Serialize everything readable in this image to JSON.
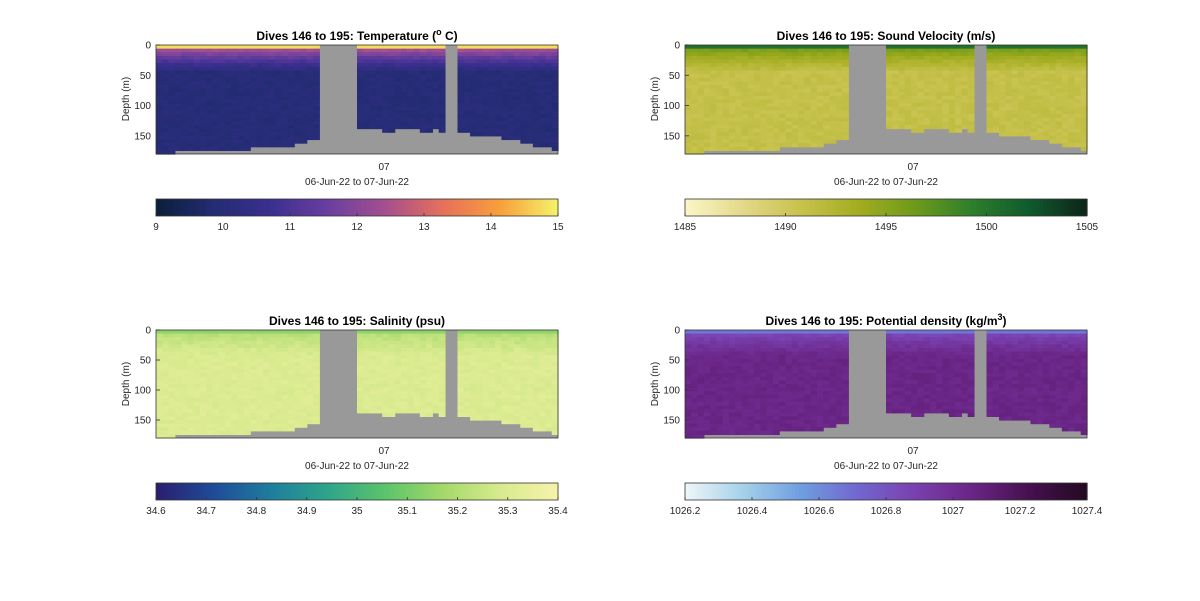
{
  "chart_data": [
    {
      "type": "heatmap",
      "title": "Dives 146 to 195: Temperature (",
      "title_sup": "o",
      "title_end": " C)",
      "ylabel": "Depth (m)",
      "ylim": [
        0,
        180
      ],
      "yticks": [
        "0",
        "50",
        "100",
        "150"
      ],
      "xtick": "07",
      "xlabel": "06-Jun-22 to 07-Jun-22",
      "colorbar_ticks": [
        "9",
        "10",
        "11",
        "12",
        "13",
        "14",
        "15"
      ],
      "colorbar_range": [
        9,
        15
      ],
      "colormap": [
        "#0b1f3a",
        "#232c72",
        "#3b2f8f",
        "#6a3fa0",
        "#a54f8f",
        "#e6705a",
        "#f8a03c",
        "#f4f36a"
      ],
      "field": "temperature",
      "surface_value": 13.8,
      "deep_value": 10.0
    },
    {
      "type": "heatmap",
      "title": "Dives 146 to 195: Sound Velocity (m/s)",
      "ylabel": "Depth (m)",
      "ylim": [
        0,
        180
      ],
      "yticks": [
        "0",
        "50",
        "100",
        "150"
      ],
      "xtick": "07",
      "xlabel": "06-Jun-22 to 07-Jun-22",
      "colorbar_ticks": [
        "1485",
        "1490",
        "1495",
        "1500",
        "1505"
      ],
      "colorbar_range": [
        1485,
        1505
      ],
      "colormap": [
        "#fbf6c8",
        "#e3d98a",
        "#c8c24e",
        "#a4ad20",
        "#6f9a1a",
        "#2d7f2c",
        "#0f5a2e",
        "#0d2418"
      ],
      "field": "sound_velocity",
      "surface_value": 1498.5,
      "deep_value": 1491.0
    },
    {
      "type": "heatmap",
      "title": "Dives 146 to 195: Salinity (psu)",
      "ylabel": "Depth (m)",
      "ylim": [
        0,
        180
      ],
      "yticks": [
        "0",
        "50",
        "100",
        "150"
      ],
      "xtick": "07",
      "xlabel": "06-Jun-22 to 07-Jun-22",
      "colorbar_ticks": [
        "34.6",
        "34.7",
        "34.8",
        "34.9",
        "35",
        "35.1",
        "35.2",
        "35.3",
        "35.4"
      ],
      "colorbar_range": [
        34.6,
        35.4
      ],
      "colormap": [
        "#2a1e6e",
        "#1f4b99",
        "#1f7d9d",
        "#2ea58a",
        "#5cc46a",
        "#a4d96a",
        "#d8ea8e",
        "#f6f3ab"
      ],
      "field": "salinity",
      "surface_value": 35.17,
      "deep_value": 35.3
    },
    {
      "type": "heatmap",
      "title": "Dives 146 to 195: Potential density (kg/m",
      "title_sup": "3",
      "title_end": ")",
      "ylabel": "Depth (m)",
      "ylim": [
        0,
        180
      ],
      "yticks": [
        "0",
        "50",
        "100",
        "150"
      ],
      "xtick": "07",
      "xlabel": "06-Jun-22 to 07-Jun-22",
      "colorbar_ticks": [
        "1026.2",
        "1026.4",
        "1026.6",
        "1026.8",
        "1027",
        "1027.2",
        "1027.4"
      ],
      "colorbar_range": [
        1026.2,
        1027.4
      ],
      "colormap": [
        "#eef6f8",
        "#a6d1ea",
        "#6f9fe0",
        "#7167cf",
        "#7a40b0",
        "#6a2585",
        "#45104f",
        "#220a22"
      ],
      "field": "density",
      "surface_value": 1026.75,
      "deep_value": 1027.05
    }
  ]
}
